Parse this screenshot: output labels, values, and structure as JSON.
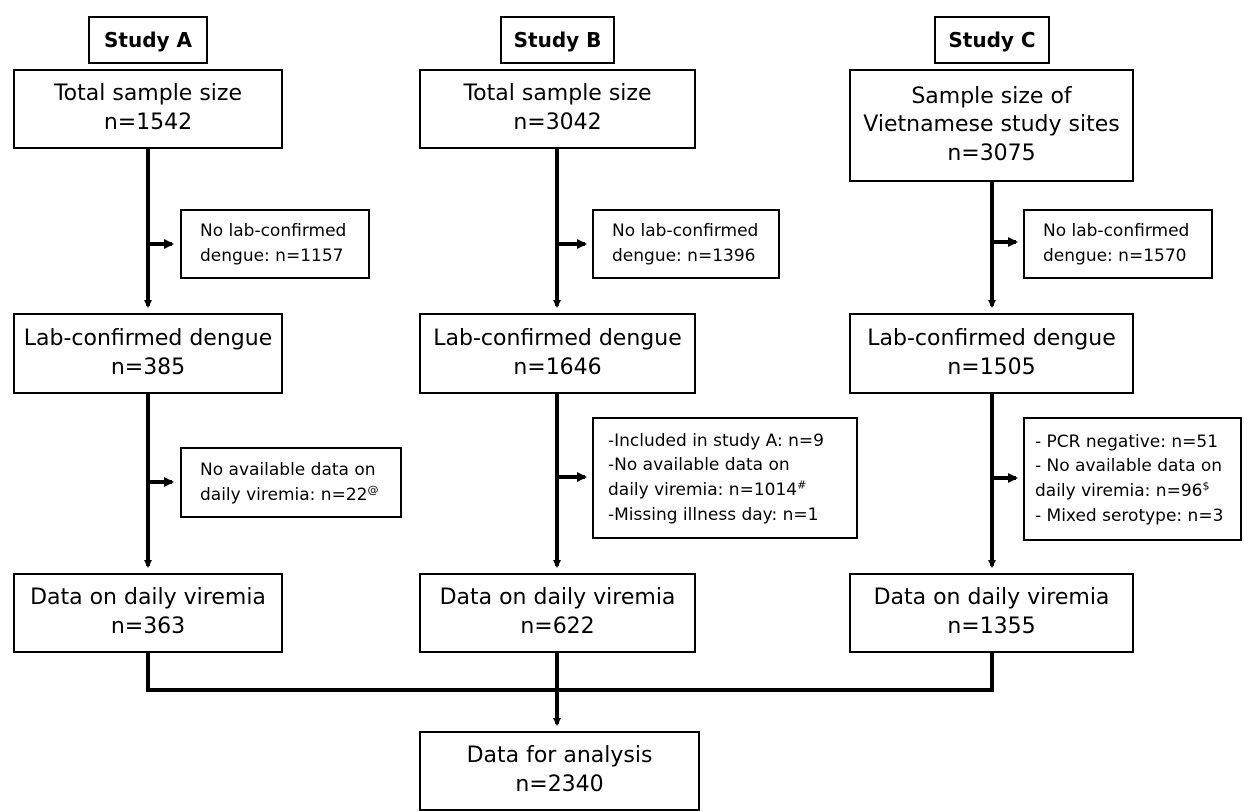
{
  "studies": [
    {
      "title": "Study A",
      "total": [
        "Total sample size",
        "n=1542"
      ],
      "excl1": [
        "No lab-confirmed",
        "dengue: n=1157"
      ],
      "confirmed": [
        "Lab-confirmed dengue",
        "n=385"
      ],
      "excl2": [
        {
          "text": "No available data on",
          "sup": ""
        },
        {
          "text": "daily viremia: n=22",
          "sup": "@"
        }
      ],
      "viremia": [
        "Data on daily viremia",
        "n=363"
      ]
    },
    {
      "title": "Study B",
      "total": [
        "Total sample size",
        "n=3042"
      ],
      "excl1": [
        "No lab-confirmed",
        "dengue: n=1396"
      ],
      "confirmed": [
        "Lab-confirmed dengue",
        "n=1646"
      ],
      "excl2": [
        {
          "text": "-Included in study A: n=9",
          "sup": ""
        },
        {
          "text": "-No available data on",
          "sup": ""
        },
        {
          "text": "  daily viremia: n=1014",
          "sup": "#"
        },
        {
          "text": "-Missing illness day: n=1",
          "sup": ""
        }
      ],
      "viremia": [
        "Data on daily viremia",
        "n=622"
      ]
    },
    {
      "title": "Study C",
      "total": [
        "Sample size of",
        "Vietnamese study sites",
        "n=3075"
      ],
      "excl1": [
        "No lab-confirmed",
        "dengue: n=1570"
      ],
      "confirmed": [
        "Lab-confirmed dengue",
        "n=1505"
      ],
      "excl2": [
        {
          "text": "- PCR negative: n=51",
          "sup": ""
        },
        {
          "text": "- No available data on",
          "sup": ""
        },
        {
          "text": "  daily viremia: n=96",
          "sup": "$"
        },
        {
          "text": "- Mixed serotype: n=3",
          "sup": ""
        }
      ],
      "viremia": [
        "Data on daily viremia",
        "n=1355"
      ]
    }
  ],
  "final": [
    "Data for analysis",
    "n=2340"
  ]
}
